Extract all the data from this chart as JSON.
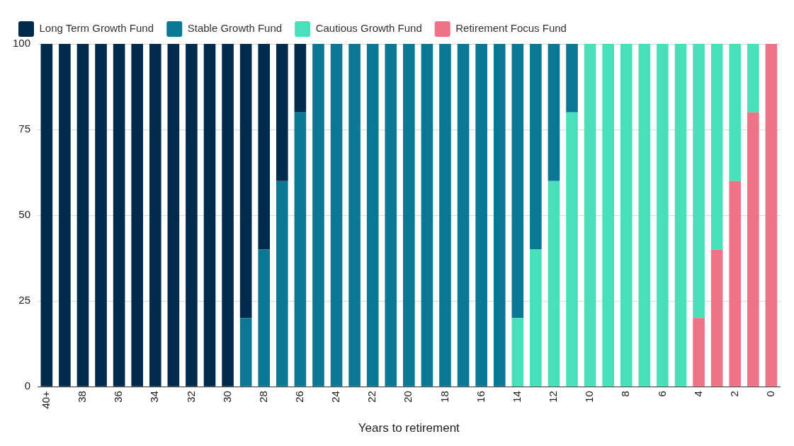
{
  "chart_data": {
    "type": "bar",
    "stacked": true,
    "xlabel": "Years to retirement",
    "categories": [
      "40+",
      null,
      "38",
      null,
      "36",
      null,
      "34",
      null,
      "32",
      null,
      "30",
      null,
      "28",
      null,
      "26",
      null,
      "24",
      null,
      "22",
      null,
      "20",
      null,
      "18",
      null,
      "16",
      null,
      "14",
      null,
      "12",
      null,
      "10",
      null,
      "8",
      null,
      "6",
      null,
      "4",
      null,
      "2",
      null,
      "0"
    ],
    "series": [
      {
        "name": "Retirement Focus Fund",
        "color": "#ef7386",
        "values": [
          0,
          0,
          0,
          0,
          0,
          0,
          0,
          0,
          0,
          0,
          0,
          0,
          0,
          0,
          0,
          0,
          0,
          0,
          0,
          0,
          0,
          0,
          0,
          0,
          0,
          0,
          0,
          0,
          0,
          0,
          0,
          0,
          0,
          0,
          0,
          0,
          20,
          40,
          60,
          80,
          100
        ]
      },
      {
        "name": "Cautious Growth Fund",
        "color": "#48e0b8",
        "values": [
          0,
          0,
          0,
          0,
          0,
          0,
          0,
          0,
          0,
          0,
          0,
          0,
          0,
          0,
          0,
          0,
          0,
          0,
          0,
          0,
          0,
          0,
          0,
          0,
          0,
          0,
          20,
          40,
          60,
          80,
          100,
          100,
          100,
          100,
          100,
          100,
          80,
          60,
          40,
          20,
          0
        ]
      },
      {
        "name": "Stable Growth Fund",
        "color": "#0a7894",
        "values": [
          0,
          0,
          0,
          0,
          0,
          0,
          0,
          0,
          0,
          0,
          0,
          20,
          40,
          60,
          80,
          100,
          100,
          100,
          100,
          100,
          100,
          100,
          100,
          100,
          100,
          100,
          80,
          60,
          40,
          20,
          0,
          0,
          0,
          0,
          0,
          0,
          0,
          0,
          0,
          0,
          0
        ]
      },
      {
        "name": "Long Term Growth Fund",
        "color": "#002b4c",
        "values": [
          100,
          100,
          100,
          100,
          100,
          100,
          100,
          100,
          100,
          100,
          100,
          80,
          60,
          40,
          20,
          0,
          0,
          0,
          0,
          0,
          0,
          0,
          0,
          0,
          0,
          0,
          0,
          0,
          0,
          0,
          0,
          0,
          0,
          0,
          0,
          0,
          0,
          0,
          0,
          0,
          0
        ]
      }
    ],
    "ylim": [
      0,
      100
    ],
    "yticks": [
      0,
      25,
      50,
      75,
      100
    ],
    "grid": "y",
    "legend": "top"
  }
}
